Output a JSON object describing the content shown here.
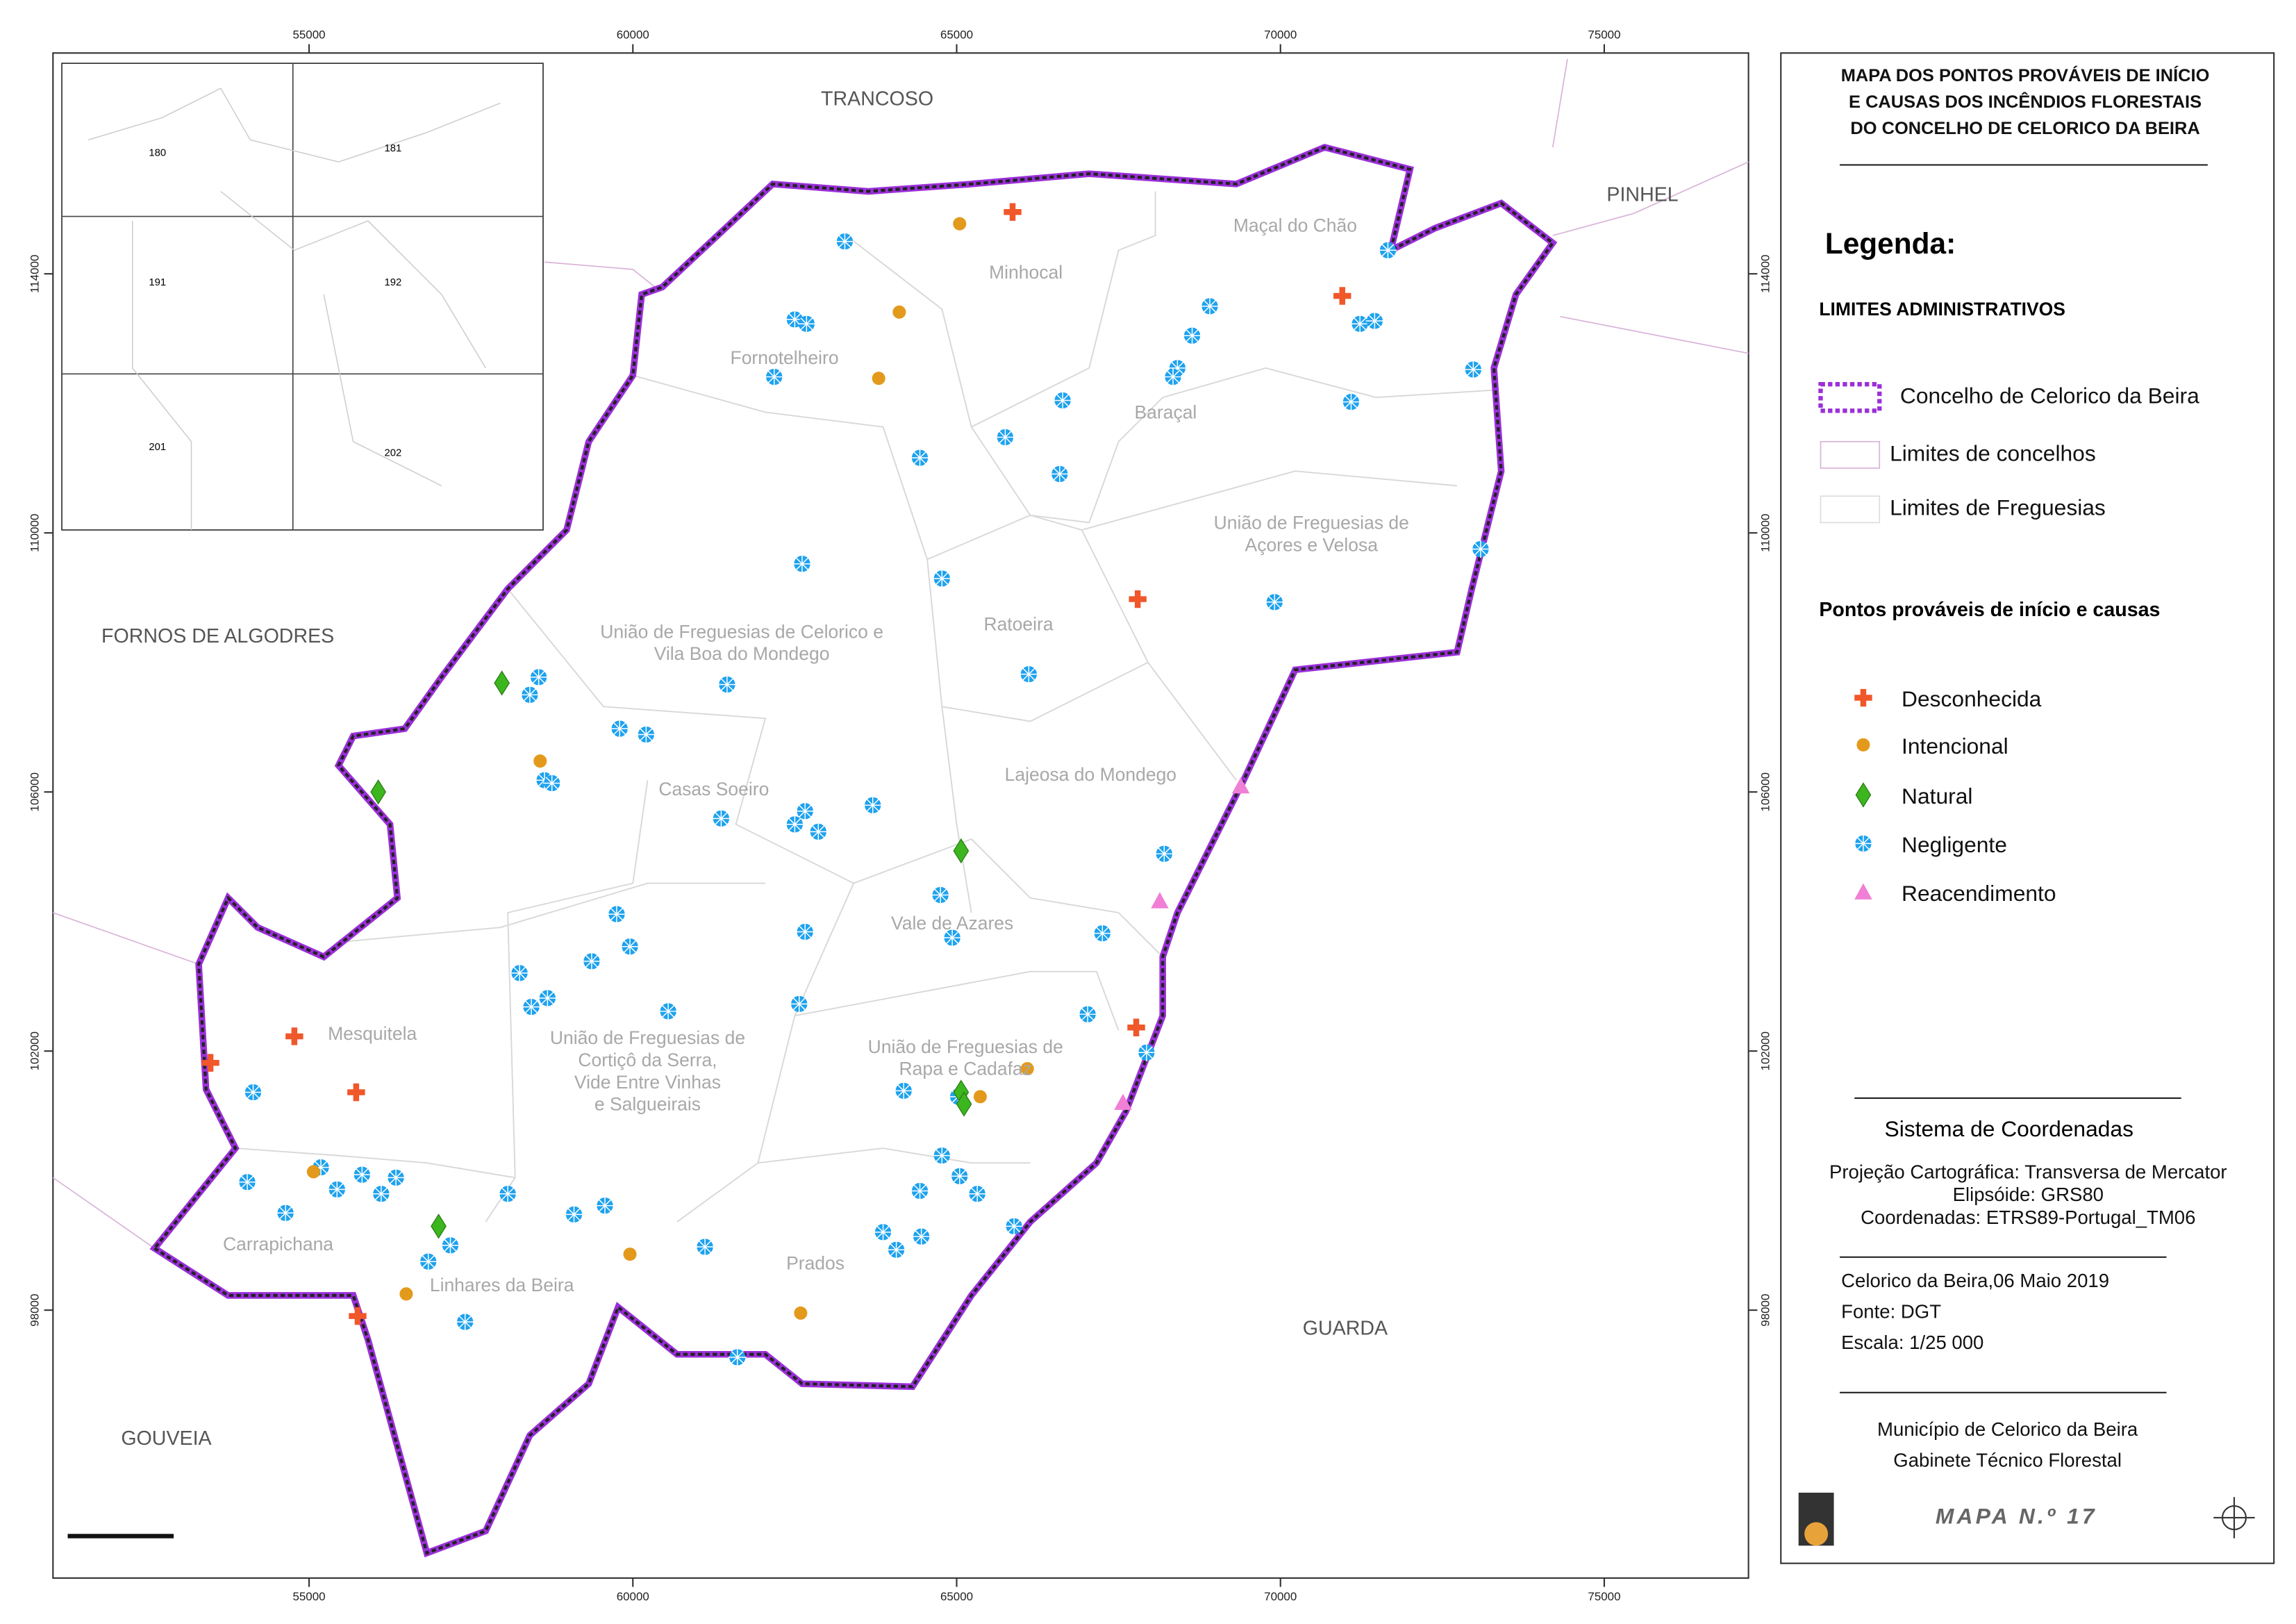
{
  "map": {
    "title": [
      "MAPA DOS PONTOS PROVÁVEIS  DE INÍCIO",
      "E CAUSAS DOS INCÊNDIOS FLORESTAIS",
      "DO CONCELHO DE CELORICO DA BEIRA"
    ],
    "xticks": [
      55000,
      60000,
      65000,
      70000,
      75000
    ],
    "yticks": [
      98000,
      102000,
      106000,
      110000,
      114000
    ],
    "neighbors": [
      "TRANCOSO",
      "PINHEL",
      "FORNOS DE ALGODRES",
      "GOUVEIA",
      "GUARDA"
    ],
    "parishes": [
      [
        "Maçal do Chão"
      ],
      [
        "Minhocal"
      ],
      [
        "Fornotelheiro"
      ],
      [
        "Baraçal"
      ],
      [
        "União de Freguesias de",
        "Açores e Velosa"
      ],
      [
        "Ratoeira"
      ],
      [
        "União de Freguesias de Celorico e",
        "Vila Boa do Mondego"
      ],
      [
        "Lajeosa do Mondego"
      ],
      [
        "Casas Soeiro"
      ],
      [
        "Vale de Azares"
      ],
      [
        "Mesquitela"
      ],
      [
        "União de Freguesias de",
        "Cortiçô da Serra,",
        "Vide Entre Vinhas",
        "e Salgueirais"
      ],
      [
        "União de Freguesias de",
        "Rapa e Cadafaz"
      ],
      [
        "Carrapichana"
      ],
      [
        "Linhares da Beira"
      ],
      [
        "Prados"
      ]
    ],
    "inset_sheets": [
      "180",
      "181",
      "191",
      "192",
      "201",
      "202"
    ]
  },
  "legend": {
    "heading": "Legenda:",
    "admin_heading": "LIMITES ADMINISTRATIVOS",
    "admin_items": [
      "Concelho de Celorico da Beira",
      "Limites de concelhos",
      "Limites de Freguesias"
    ],
    "points_heading": "Pontos prováveis de início e causas",
    "point_items": [
      "Desconhecida",
      "Intencional",
      "Natural",
      "Negligente",
      "Reacendimento"
    ]
  },
  "info": {
    "crs_heading": "Sistema de Coordenadas",
    "crs_lines": [
      "Projeção Cartográfica: Transversa de Mercator",
      "Elipsóide: GRS80",
      "Coordenadas: ETRS89-Portugal_TM06"
    ],
    "meta_lines": [
      "Celorico da Beira,06 Maio 2019",
      "Fonte: DGT",
      "Escala: 1/25 000"
    ],
    "credit_lines": [
      "Município de Celorico da Beira",
      "Gabinete Técnico Florestal"
    ],
    "map_number": "MAPA N.º 17"
  }
}
